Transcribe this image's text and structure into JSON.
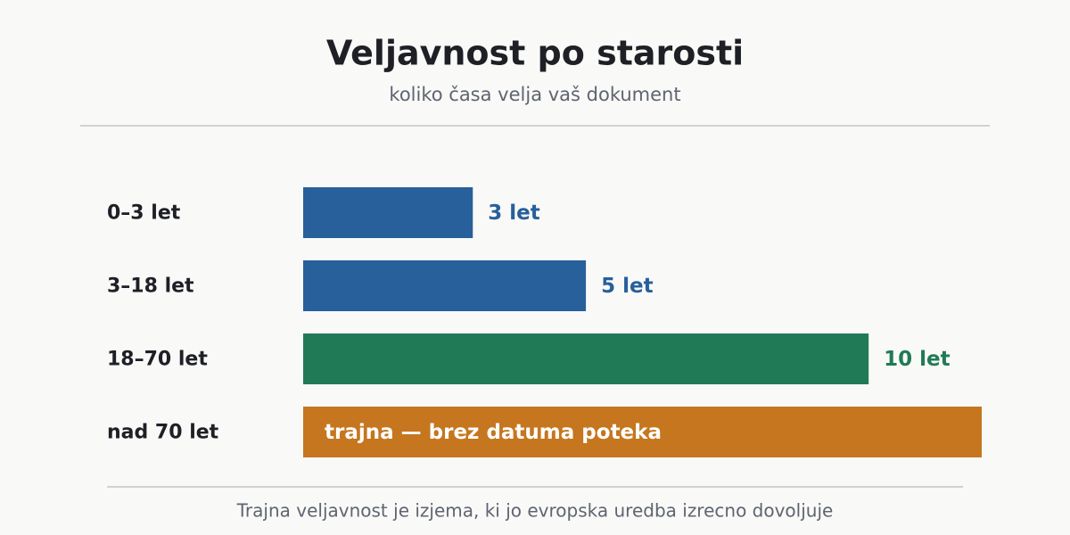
{
  "chart_data": {
    "type": "hbar",
    "title": "Veljavnost po starosti",
    "subtitle": "koliko časa velja vaš dokument",
    "categories": [
      "0–3 let",
      "3–18 let",
      "18–70 let",
      "nad 70 let"
    ],
    "values": [
      3,
      5,
      10,
      null
    ],
    "value_labels": [
      "3 let",
      "5 let",
      "10 let",
      "trajna — brez datuma poteka"
    ],
    "colors": [
      "#27609a",
      "#27609a",
      "#217a56",
      "#c6761e"
    ],
    "xlim": [
      0,
      12
    ],
    "footnote": "Trajna veljavnost je izjema, ki jo evropska uredba izrecno dovoljuje"
  }
}
